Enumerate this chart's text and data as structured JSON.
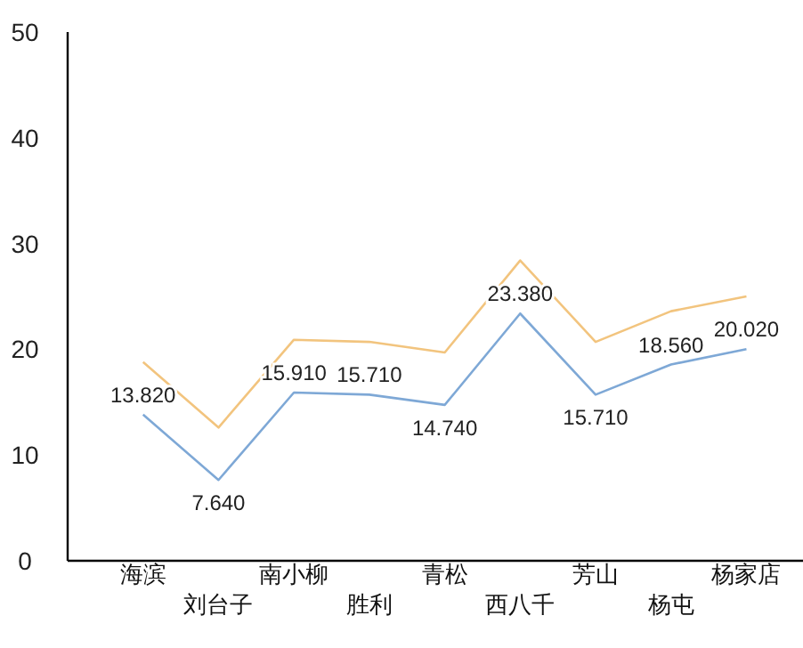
{
  "chart_data": {
    "type": "line",
    "categories": [
      "海滨",
      "刘台子",
      "南小柳",
      "胜利",
      "青松",
      "西八千",
      "芳山",
      "杨屯",
      "杨家店"
    ],
    "series": [
      {
        "color": "#f2c47e",
        "values": [
          18.8,
          12.6,
          20.9,
          20.7,
          19.7,
          28.4,
          20.7,
          23.6,
          25.0
        ]
      },
      {
        "color": "#7ea8d6",
        "values": [
          13.82,
          7.64,
          15.91,
          15.71,
          14.74,
          23.38,
          15.71,
          18.56,
          20.02
        ],
        "value_labels": [
          "13.820",
          "7.640",
          "15.910",
          "15.710",
          "14.740",
          "23.380",
          "15.710",
          "18.560",
          "20.020"
        ]
      }
    ],
    "ylim": [
      0,
      50
    ],
    "yticks": [
      0,
      10,
      20,
      30,
      40,
      50
    ],
    "grid": false,
    "marker": "none",
    "line_style": "solid"
  }
}
